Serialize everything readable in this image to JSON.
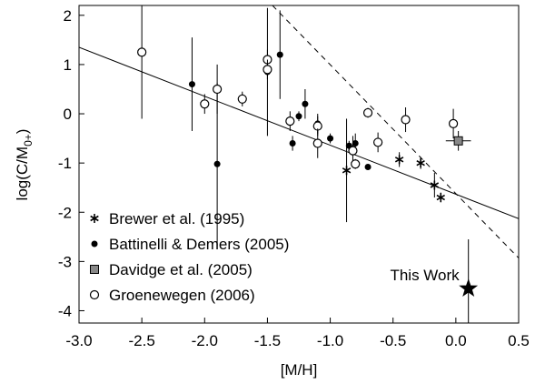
{
  "chart_data": {
    "type": "scatter",
    "xlabel": "[M/H]",
    "ylabel": {
      "main": "log(C/M",
      "sub": "0+",
      "end": ")"
    },
    "xlim": [
      -3,
      0.5
    ],
    "ylim": [
      -4.25,
      2.2
    ],
    "xticks": [
      {
        "value": -3,
        "label": "-3.0"
      },
      {
        "value": -2.5,
        "label": "-2.5"
      },
      {
        "value": -2,
        "label": "-2.0"
      },
      {
        "value": -1.5,
        "label": "-1.5"
      },
      {
        "value": -1,
        "label": "-1.0"
      },
      {
        "value": -0.5,
        "label": "-0.5"
      },
      {
        "value": 0,
        "label": "0.0"
      },
      {
        "value": 0.5,
        "label": "0.5"
      }
    ],
    "yticks": [
      2,
      1,
      0,
      -1,
      -2,
      -3,
      -4
    ],
    "legend": "lower left",
    "series": [
      {
        "name": "Brewer et al. (1995)",
        "marker": "asterisk",
        "color": "#000000",
        "x": [
          -0.87,
          -0.45,
          -0.28,
          -0.17,
          -0.12
        ],
        "values": [
          -1.15,
          -0.93,
          -1.0,
          -1.45,
          -1.7
        ],
        "errors": [
          1.05,
          0.15,
          0.12,
          0.25,
          0.1
        ]
      },
      {
        "name": "Battinelli & Demers (2005)",
        "marker": "dot",
        "color": "#000000",
        "x": [
          -2.1,
          -1.9,
          -1.7,
          -1.5,
          -1.4,
          -1.3,
          -1.25,
          -1.2,
          -1.1,
          -1.0,
          -0.85,
          -0.8,
          -0.7
        ],
        "values": [
          0.6,
          -1.02,
          0.3,
          0.85,
          1.2,
          -0.6,
          -0.05,
          0.2,
          -0.2,
          -0.5,
          -0.65,
          -0.6,
          -1.08
        ],
        "errors": [
          0.95,
          1.65,
          0.15,
          1.3,
          0.9,
          0.15,
          0.1,
          0.3,
          0.2,
          0.1,
          0.1,
          0.2,
          0.05
        ]
      },
      {
        "name": "Davidge et al. (2005)",
        "marker": "square",
        "color": "#888888",
        "x": [
          0.02
        ],
        "values": [
          -0.55
        ],
        "errors": [
          0.2
        ],
        "xerrors": [
          0.1
        ]
      },
      {
        "name": "Groenewegen (2006)",
        "marker": "circle",
        "color": "#000000",
        "x": [
          -2.5,
          -2.0,
          -1.9,
          -1.7,
          -1.5,
          -1.5,
          -1.32,
          -1.1,
          -1.1,
          -0.82,
          -0.8,
          -0.7,
          -0.62,
          -0.4,
          -0.02
        ],
        "values": [
          1.25,
          0.2,
          0.5,
          0.3,
          1.1,
          0.9,
          -0.15,
          -0.25,
          -0.6,
          -0.75,
          -1.02,
          0.02,
          -0.58,
          -0.12,
          -0.2
        ],
        "errors": [
          1.35,
          0.2,
          0.5,
          0.1,
          0.2,
          0.2,
          0.2,
          0.2,
          0.3,
          0.3,
          0.1,
          0.1,
          0.2,
          0.25,
          0.3
        ]
      },
      {
        "marker": "star",
        "color": "#000000",
        "label": "This Work",
        "x": [
          0.1
        ],
        "values": [
          -3.55
        ],
        "errors": [
          1.0
        ]
      }
    ],
    "lines": [
      {
        "x": [
          -3,
          0.5
        ],
        "values": [
          1.35,
          -2.13
        ],
        "dash": false
      },
      {
        "x": [
          -1.46,
          0.5
        ],
        "values": [
          2.2,
          -2.93
        ],
        "dash": true
      }
    ]
  }
}
